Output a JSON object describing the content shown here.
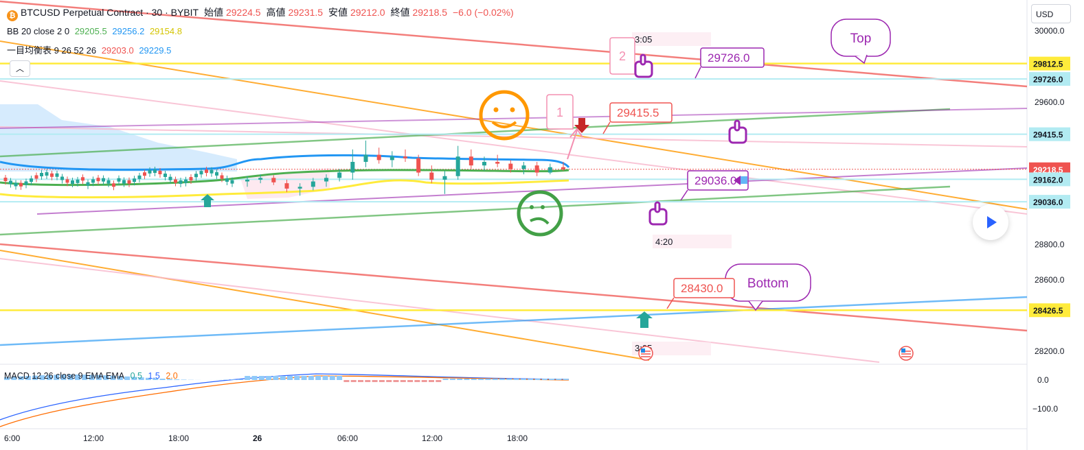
{
  "header": {
    "symbol_title": "BTCUSD Perpetual Contract · 30 · BYBIT",
    "open_label": "始値",
    "open_value": "29224.5",
    "high_label": "高値",
    "high_value": "29231.5",
    "low_label": "安値",
    "low_value": "29212.0",
    "close_label": "終値",
    "close_value": "29218.5",
    "change": "−6.0 (−0.02%)"
  },
  "bb_legend": {
    "label": "BB 20 close 2 0",
    "basis": "29205.5",
    "upper": "29256.2",
    "lower": "29154.8"
  },
  "ichimoku_legend": {
    "label": "一目均衡表 9 26 52 26",
    "v1": "29203.0",
    "v2": "29229.5"
  },
  "collapse_icon": "chevron-up",
  "currency": "USD",
  "macd_legend": {
    "label": "MACD 12 26 close 9 EMA EMA",
    "v1": "0.5",
    "v2": "1.5",
    "v3": "2.0"
  },
  "colors": {
    "red": "#ef5350",
    "green": "#26a69a",
    "blue": "#2196f3",
    "yellow": "#ffeb3b",
    "orange": "#ff9800",
    "purple": "#9c27b0",
    "pink": "#f8bbd0",
    "cyan": "#b2ebf2",
    "lime": "#4caf50",
    "macd_line": "#2962ff",
    "signal_line": "#ff6d00"
  },
  "chart_data": {
    "type": "candlestick",
    "price_axis": {
      "ticks": [
        30000,
        29800,
        29600,
        29400,
        29200,
        29000,
        28800,
        28600,
        28400,
        28200
      ],
      "tick_labels": [
        "30000.0",
        "29600.0",
        "28800.0",
        "28600.0",
        "28200.0"
      ]
    },
    "time_axis": {
      "labels": [
        "6:00",
        "12:00",
        "18:00",
        "26",
        "06:00",
        "12:00",
        "18:00"
      ]
    },
    "macd_axis": {
      "tick_labels": [
        "0.0",
        "−100.0"
      ]
    },
    "price_tags": [
      {
        "label": "29812.5",
        "value": 29812.5,
        "color": "#ffeb3b",
        "text_color": "#131722"
      },
      {
        "label": "29726.0",
        "value": 29726.0,
        "color": "#b2ebf2",
        "text_color": "#131722"
      },
      {
        "label": "29415.5",
        "value": 29415.5,
        "color": "#b2ebf2",
        "text_color": "#131722"
      },
      {
        "label": "29218.5",
        "value": 29218.5,
        "color": "#ef5350",
        "text_color": "#ffffff"
      },
      {
        "label": "29162.0",
        "value": 29162.0,
        "color": "#b2ebf2",
        "text_color": "#131722"
      },
      {
        "label": "29036.0",
        "value": 29036.0,
        "color": "#b2ebf2",
        "text_color": "#131722"
      },
      {
        "label": "28426.5",
        "value": 28426.5,
        "color": "#ffeb3b",
        "text_color": "#131722"
      }
    ],
    "annotations": {
      "callout_top": "Top",
      "callout_bottom": "Bottom",
      "label_29726": "29726.0",
      "label_29415": "29415.5",
      "label_29036": "29036.0",
      "label_28430": "28430.0",
      "time_305": "3:05",
      "time_420": "4:20",
      "time_305b": "3:05",
      "note_1": "1",
      "note_2": "2"
    },
    "candles_ohlc_approx": [
      [
        29150,
        29180,
        29120,
        29160
      ],
      [
        29160,
        29190,
        29140,
        29170
      ],
      [
        29170,
        29185,
        29130,
        29145
      ],
      [
        29140,
        29160,
        29090,
        29110
      ],
      [
        29110,
        29140,
        29070,
        29120
      ],
      [
        29120,
        29170,
        29100,
        29150
      ],
      [
        29150,
        29190,
        29120,
        29170
      ],
      [
        29170,
        29220,
        29150,
        29200
      ],
      [
        29200,
        29330,
        29160,
        29260
      ],
      [
        29260,
        29380,
        29230,
        29300
      ],
      [
        29300,
        29340,
        29250,
        29270
      ],
      [
        29270,
        29320,
        29230,
        29290
      ],
      [
        29290,
        29330,
        29260,
        29280
      ],
      [
        29280,
        29300,
        29180,
        29200
      ],
      [
        29200,
        29240,
        29140,
        29160
      ],
      [
        29160,
        29210,
        29080,
        29180
      ],
      [
        29180,
        29350,
        29160,
        29290
      ],
      [
        29290,
        29330,
        29220,
        29240
      ],
      [
        29240,
        29290,
        29210,
        29260
      ],
      [
        29260,
        29300,
        29230,
        29250
      ],
      [
        29250,
        29270,
        29200,
        29220
      ],
      [
        29220,
        29260,
        29190,
        29240
      ],
      [
        29240,
        29260,
        29180,
        29200
      ],
      [
        29200,
        29250,
        29190,
        29230
      ],
      [
        29230,
        29260,
        29210,
        29218.5
      ]
    ]
  }
}
